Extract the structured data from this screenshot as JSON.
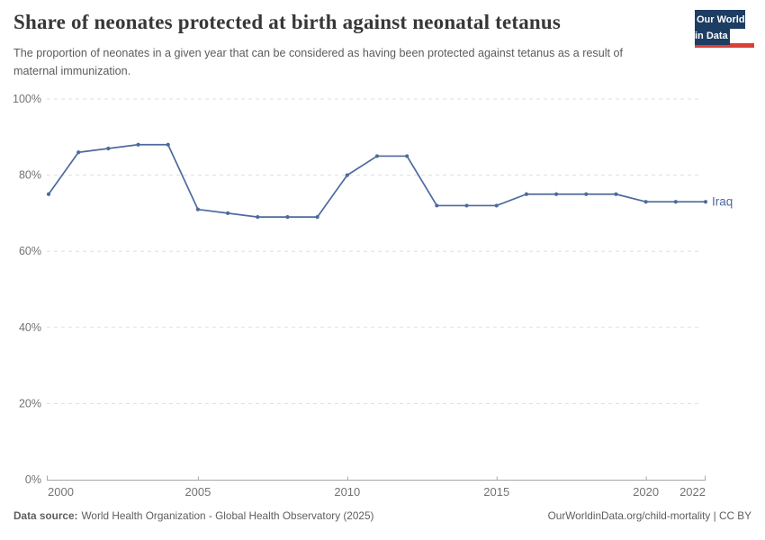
{
  "header": {
    "title": "Share of neonates protected at birth against neonatal tetanus",
    "subtitle": "The proportion of neonates in a given year that can be considered as having been protected against tetanus as a result of maternal immunization."
  },
  "logo": {
    "line1": "Our World",
    "line2": "in Data",
    "bg_color": "#1d3d63",
    "accent_color": "#dc3f34"
  },
  "chart_data": {
    "type": "line",
    "title": "Share of neonates protected at birth against neonatal tetanus",
    "xlabel": "",
    "ylabel": "",
    "xlim": [
      2000,
      2022
    ],
    "ylim": [
      0,
      100
    ],
    "xticks": [
      2000,
      2005,
      2010,
      2015,
      2020,
      2022
    ],
    "yticks": [
      0,
      20,
      40,
      60,
      80,
      100
    ],
    "ytick_suffix": "%",
    "grid": "horizontal-dashed",
    "legend_position": "end-of-line",
    "series": [
      {
        "name": "Iraq",
        "color": "#4c6a9c",
        "x": [
          2000,
          2001,
          2002,
          2003,
          2004,
          2005,
          2006,
          2007,
          2008,
          2009,
          2010,
          2011,
          2012,
          2013,
          2014,
          2015,
          2016,
          2017,
          2018,
          2019,
          2020,
          2021,
          2022
        ],
        "values": [
          75,
          86,
          87,
          88,
          88,
          71,
          70,
          69,
          69,
          69,
          80,
          85,
          85,
          72,
          72,
          72,
          75,
          75,
          75,
          75,
          73,
          73,
          73
        ]
      }
    ]
  },
  "footer": {
    "data_source_label": "Data source:",
    "data_source_value": "World Health Organization - Global Health Observatory (2025)",
    "link_text": "OurWorldinData.org/child-mortality | CC BY"
  }
}
